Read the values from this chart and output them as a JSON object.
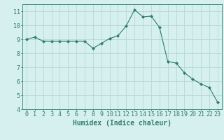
{
  "x": [
    0,
    1,
    2,
    3,
    4,
    5,
    6,
    7,
    8,
    9,
    10,
    11,
    12,
    13,
    14,
    15,
    16,
    17,
    18,
    19,
    20,
    21,
    22,
    23
  ],
  "y": [
    9.0,
    9.15,
    8.85,
    8.85,
    8.85,
    8.85,
    8.85,
    8.85,
    8.35,
    8.7,
    9.05,
    9.25,
    9.95,
    11.1,
    10.6,
    10.65,
    9.85,
    7.4,
    7.3,
    6.6,
    6.15,
    5.8,
    5.55,
    4.5
  ],
  "line_color": "#2e7d6e",
  "marker": "D",
  "marker_size": 2,
  "bg_color": "#d6efef",
  "grid_color": "#b8d8d8",
  "xlabel": "Humidex (Indice chaleur)",
  "xlim": [
    -0.5,
    23.5
  ],
  "ylim": [
    4,
    11.5
  ],
  "yticks": [
    4,
    5,
    6,
    7,
    8,
    9,
    10,
    11
  ],
  "xticks": [
    0,
    1,
    2,
    3,
    4,
    5,
    6,
    7,
    8,
    9,
    10,
    11,
    12,
    13,
    14,
    15,
    16,
    17,
    18,
    19,
    20,
    21,
    22,
    23
  ],
  "tick_color": "#2e7d6e",
  "label_fontsize": 7,
  "tick_fontsize": 6,
  "font_family": "monospace"
}
